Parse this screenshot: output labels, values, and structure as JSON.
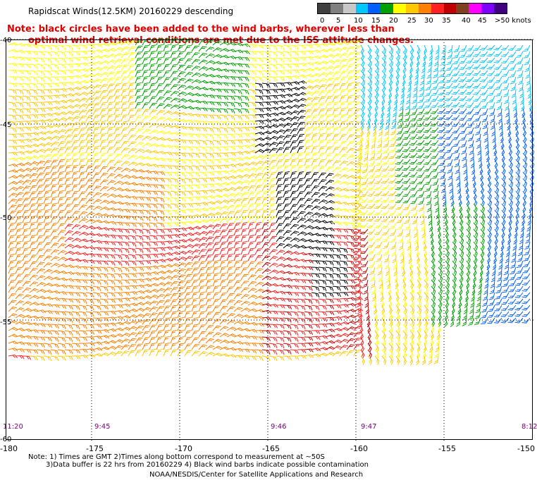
{
  "title": "Rapidscat Winds(12.5KM) 20160229 descending",
  "warning": {
    "line1": "Note: black circles have been added to the wind barbs, wherever less than",
    "line2": "optimal wind retrieval conditions are met due to the ISS attitude changes."
  },
  "legend": {
    "colors": [
      "#404040",
      "#808080",
      "#c8c8c8",
      "#00c8ff",
      "#0060ff",
      "#00a000",
      "#ffff00",
      "#ffc800",
      "#ff8000",
      "#ff2020",
      "#c00000",
      "#804020",
      "#ff00ff",
      "#8000ff",
      "#400080"
    ],
    "labels": [
      "0",
      "5",
      "10",
      "15",
      "20",
      "25",
      "30",
      "35",
      "40",
      "45",
      ">50 knots"
    ]
  },
  "lat_labels": [
    "-40",
    "-45",
    "-50",
    "-55",
    "-60"
  ],
  "lon_labels": [
    "-180",
    "-175",
    "-170",
    "-165",
    "-160",
    "-155",
    "-150"
  ],
  "time_labels": [
    "11:20",
    "9:45",
    "9:46",
    "9:47",
    "8:12"
  ],
  "notes": {
    "line1": "Note: 1) Times are GMT 2)Times along bottom correspond to measurement at ~50S",
    "line2": "3)Data buffer is 22 hrs from 20160229 4) Black wind barbs indicate possible contamination"
  },
  "credit": "NOAA/NESDIS/Center for Satellite Applications and Research"
}
